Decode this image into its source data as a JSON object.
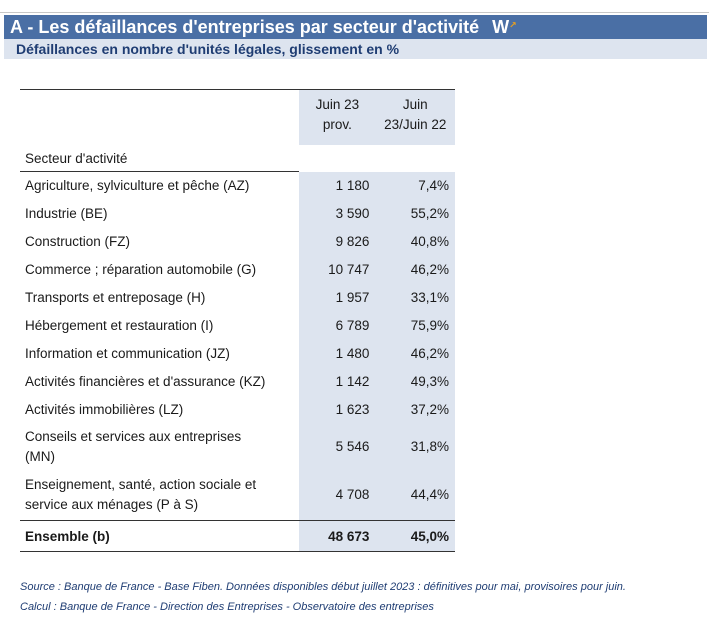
{
  "header": {
    "title": "A - Les défaillances d'entreprises par secteur d'activité",
    "logo_letter": "W",
    "logo_mark": "↗",
    "subtitle": "Défaillances en nombre d'unités légales, glissement en %"
  },
  "table": {
    "col2_header_line1": "Juin 23",
    "col2_header_line2": "prov.",
    "col3_header_line1": "Juin",
    "col3_header_line2": "23/Juin 22",
    "sector_header": "Secteur d'activité",
    "rows": [
      {
        "label": "Agriculture, sylviculture et pêche (AZ)",
        "count": "1 180",
        "change": "7,4%"
      },
      {
        "label": "Industrie (BE)",
        "count": "3 590",
        "change": "55,2%"
      },
      {
        "label": "Construction (FZ)",
        "count": "9 826",
        "change": "40,8%"
      },
      {
        "label": "Commerce ; réparation automobile (G)",
        "count": "10 747",
        "change": "46,2%"
      },
      {
        "label": "Transports et entreposage (H)",
        "count": "1 957",
        "change": "33,1%"
      },
      {
        "label": "Hébergement et restauration (I)",
        "count": "6 789",
        "change": "75,9%"
      },
      {
        "label": "Information et communication (JZ)",
        "count": "1 480",
        "change": "46,2%"
      },
      {
        "label": "Activités financières et d'assurance (KZ)",
        "count": "1 142",
        "change": "49,3%"
      },
      {
        "label": "Activités immobilières (LZ)",
        "count": "1 623",
        "change": "37,2%"
      },
      {
        "label_line1": "Conseils et services aux entreprises",
        "label_line2": "(MN)",
        "count": "5 546",
        "change": "31,8%"
      },
      {
        "label_line1": "Enseignement, santé, action sociale et",
        "label_line2": "service aux ménages (P à S)",
        "count": "4 708",
        "change": "44,4%"
      }
    ],
    "total": {
      "label": "Ensemble (b)",
      "count": "48 673",
      "change": "45,0%"
    }
  },
  "notes": {
    "source": "Source : Banque de France - Base Fiben. Données disponibles début juillet 2023 : définitives pour mai, provisoires pour juin.",
    "calcul": "Calcul : Banque de France - Direction des Entreprises - Observatoire des entreprises"
  },
  "colors": {
    "title_bar": "#4a6fa5",
    "subtitle_bar": "#dde4ef",
    "column_shade": "#dde4ef",
    "note_text": "#1f3d73"
  }
}
